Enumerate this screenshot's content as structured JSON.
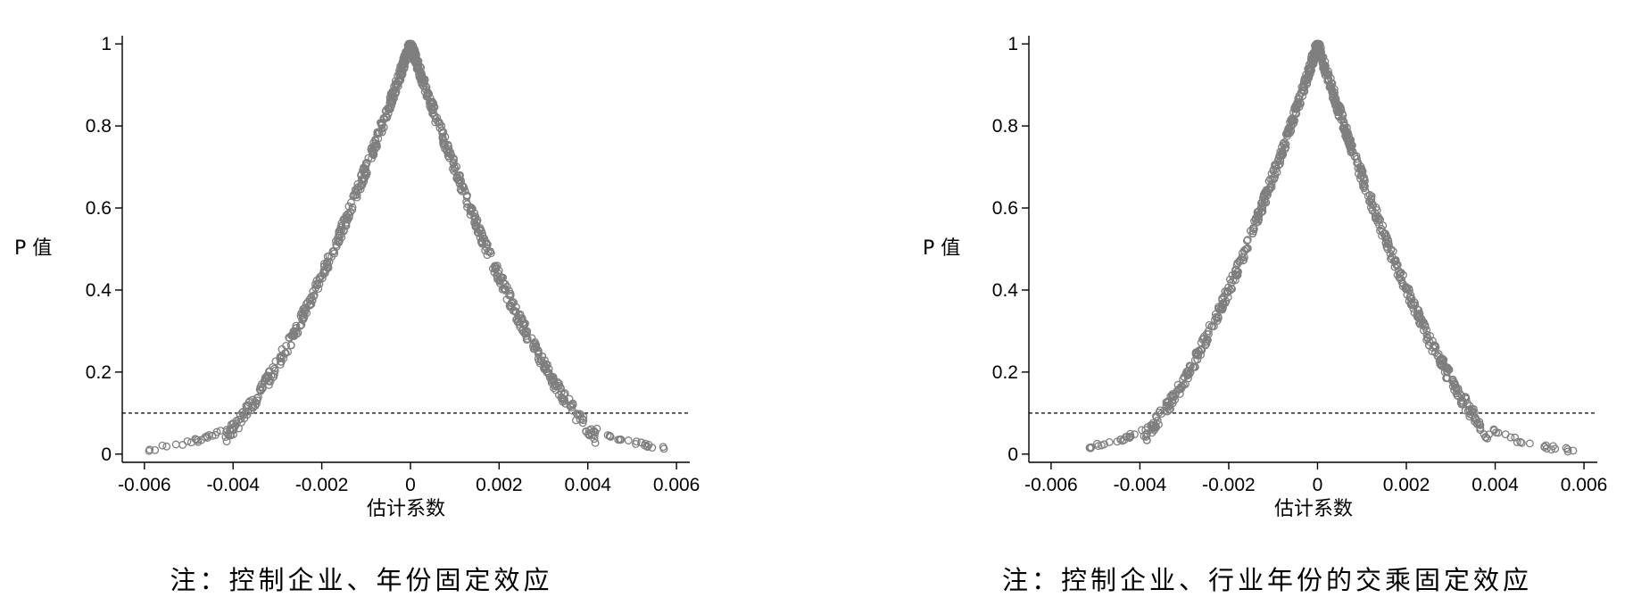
{
  "charts": [
    {
      "type": "scatter",
      "xlabel": "估计系数",
      "ylabel": "P 值",
      "caption": "注：控制企业、年份固定效应",
      "xlim": [
        -0.0065,
        0.0063
      ],
      "ylim": [
        -0.02,
        1.02
      ],
      "x_ticks": [
        "-0.006",
        "-0.004",
        "-0.002",
        "0",
        "0.002",
        "0.004",
        "0.006"
      ],
      "y_ticks": [
        "0",
        "0.2",
        "0.4",
        "0.6",
        "0.8",
        "1"
      ],
      "reference_line": {
        "y": 0.1,
        "style": "dashed"
      },
      "marker": "hollow-circle",
      "color": "#7f7f7f",
      "distribution": {
        "peak_x": 0,
        "peak_y": 1,
        "x_at_p010": [
          -0.0031,
          0.0031
        ],
        "x_min": -0.0059,
        "x_max": 0.0058
      }
    },
    {
      "type": "scatter",
      "xlabel": "估计系数",
      "ylabel": "P 值",
      "caption": "注：控制企业、行业年份的交乘固定效应",
      "xlim": [
        -0.0065,
        0.0063
      ],
      "ylim": [
        -0.02,
        1.02
      ],
      "x_ticks": [
        "-0.006",
        "-0.004",
        "-0.002",
        "0",
        "0.002",
        "0.004",
        "0.006"
      ],
      "y_ticks": [
        "0",
        "0.2",
        "0.4",
        "0.6",
        "0.8",
        "1"
      ],
      "reference_line": {
        "y": 0.1,
        "style": "dashed"
      },
      "marker": "hollow-circle",
      "color": "#7f7f7f",
      "distribution": {
        "peak_x": 0,
        "peak_y": 1,
        "x_at_p010": [
          -0.0029,
          0.0029
        ],
        "x_min": -0.0052,
        "x_max": 0.0058
      }
    }
  ]
}
